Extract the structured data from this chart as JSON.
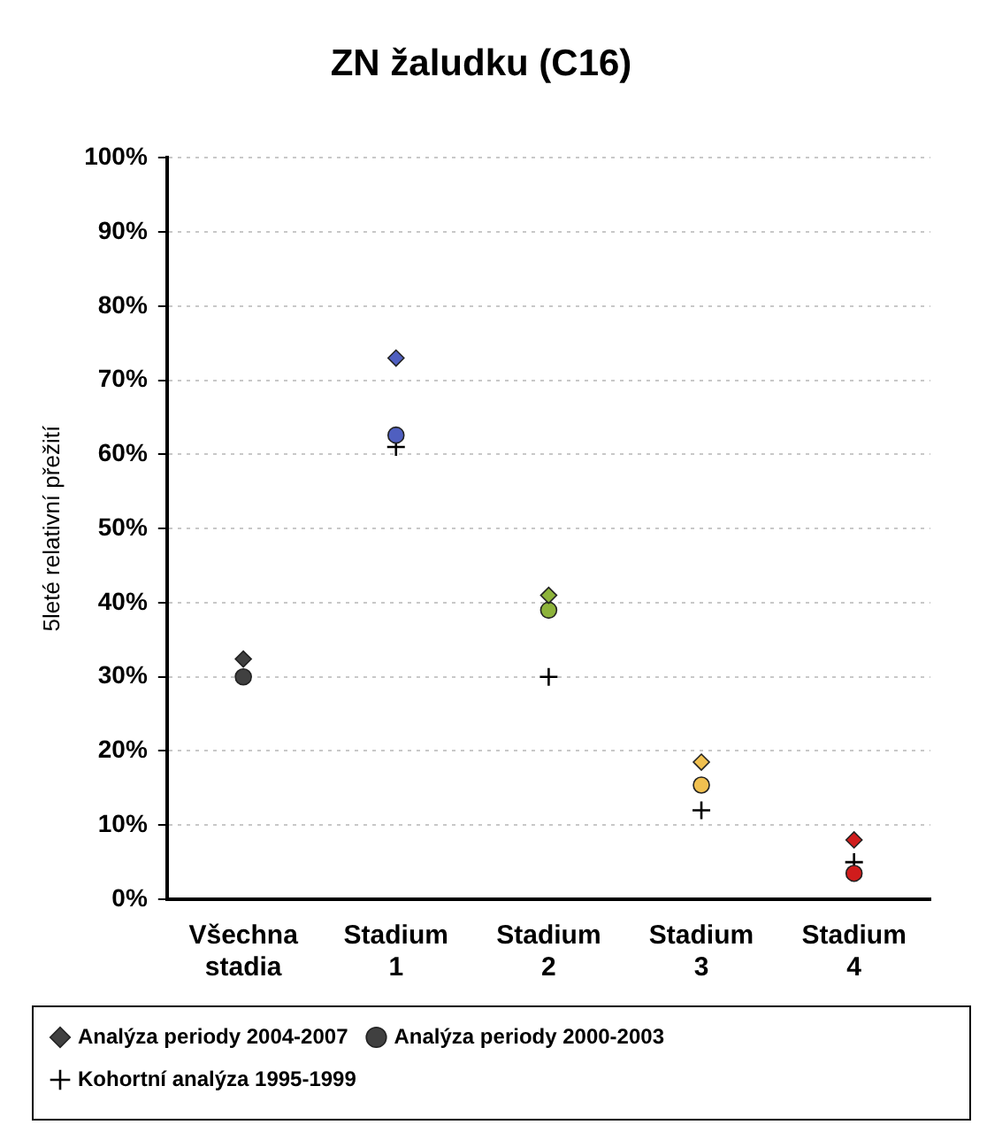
{
  "chart_data": {
    "type": "scatter",
    "title": "ZN žaludku (C16)",
    "ylabel": "5leté relativní přežití",
    "categories": [
      "Všechna stadia",
      "Stadium 1",
      "Stadium 2",
      "Stadium 3",
      "Stadium 4"
    ],
    "series": [
      {
        "name": "Analýza periody 2004-2007",
        "marker": "diamond",
        "color": "#a0a0a0",
        "colors": [
          "#404040",
          "#4f5fc0",
          "#8db33a",
          "#f0c050",
          "#d01c1c"
        ],
        "values": [
          32.4,
          73,
          41,
          18.5,
          8
        ]
      },
      {
        "name": "Analýza periody 2000-2003",
        "marker": "circle",
        "color": "#a0a0a0",
        "colors": [
          "#404040",
          "#4f5fc0",
          "#8db33a",
          "#f0c050",
          "#d01c1c"
        ],
        "values": [
          30,
          62.6,
          39,
          15.4,
          3.5
        ]
      },
      {
        "name": "Kohortní analýza 1995-1999",
        "marker": "cross",
        "color": "#000000",
        "values": [
          null,
          61,
          30,
          12,
          5
        ]
      }
    ],
    "ylim": [
      0,
      100
    ],
    "yticks": [
      {
        "value": 0,
        "label": "0%"
      },
      {
        "value": 10,
        "label": "10%"
      },
      {
        "value": 20,
        "label": "20%"
      },
      {
        "value": 30,
        "label": "30%"
      },
      {
        "value": 40,
        "label": "40%"
      },
      {
        "value": 50,
        "label": "50%"
      },
      {
        "value": 60,
        "label": "60%"
      },
      {
        "value": 70,
        "label": "70%"
      },
      {
        "value": 80,
        "label": "80%"
      },
      {
        "value": 90,
        "label": "90%"
      },
      {
        "value": 100,
        "label": "100%"
      }
    ],
    "grid": "y",
    "legend": "bottom"
  }
}
